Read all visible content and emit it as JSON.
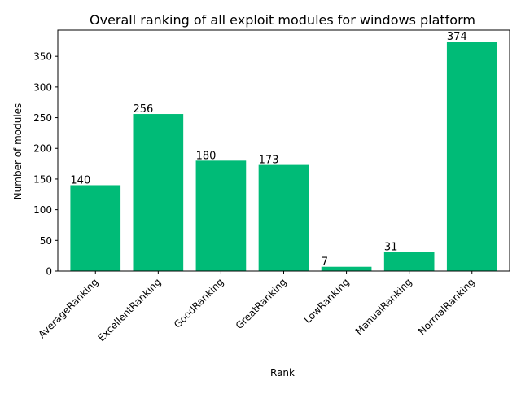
{
  "chart_data": {
    "type": "bar",
    "title": "Overall ranking of all exploit modules for windows platform",
    "xlabel": "Rank",
    "ylabel": "Number of modules",
    "categories": [
      "AverageRanking",
      "ExcellentRanking",
      "GoodRanking",
      "GreatRanking",
      "LowRanking",
      "ManualRanking",
      "NormalRanking"
    ],
    "values": [
      140,
      256,
      180,
      173,
      7,
      31,
      374
    ],
    "data_labels": [
      "140",
      "256",
      "180",
      "173",
      "7",
      "31",
      "374"
    ],
    "ylim": [
      0,
      392.7
    ],
    "yticks": [
      0,
      50,
      100,
      150,
      200,
      250,
      300,
      350
    ],
    "grid": false,
    "legend": "none",
    "bar_color": "#00bb77"
  }
}
